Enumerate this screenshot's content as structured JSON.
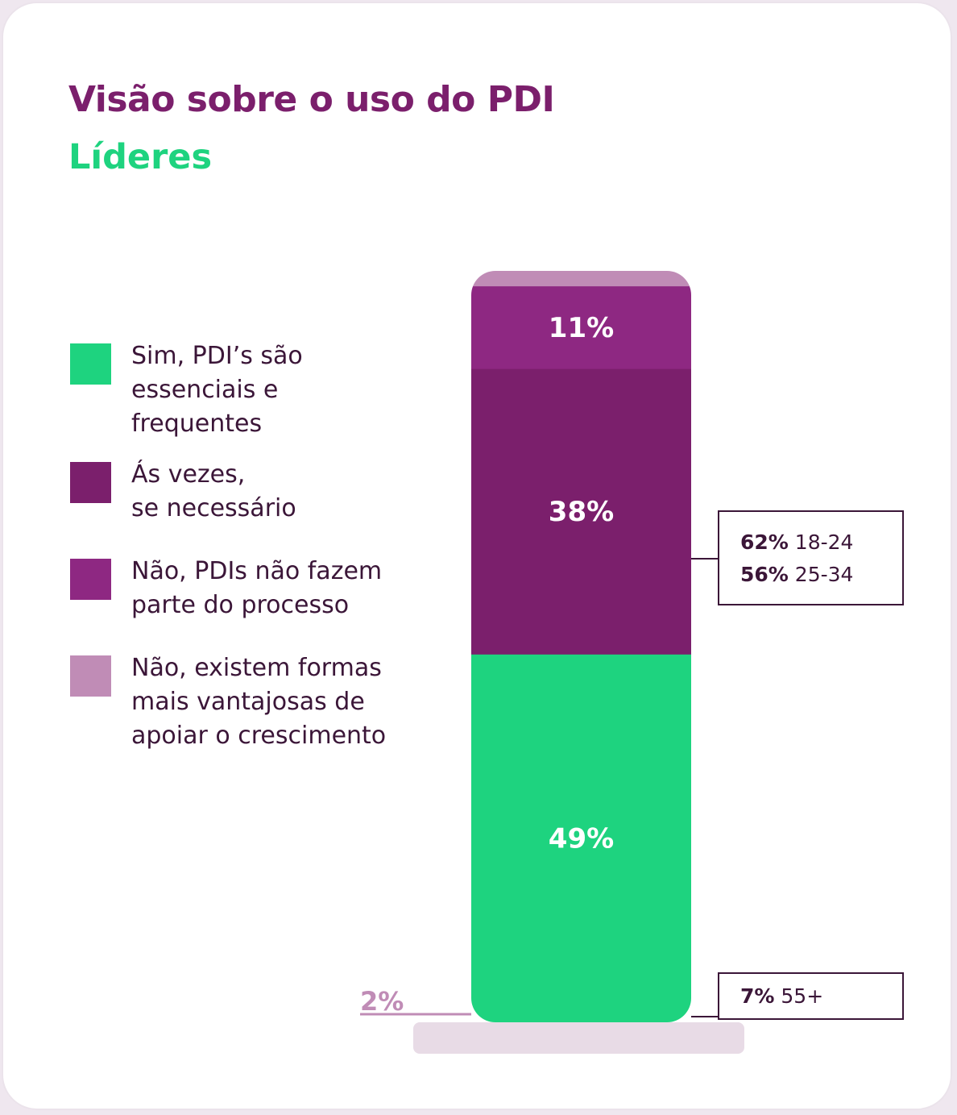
{
  "chart_data": {
    "type": "bar",
    "stacked": true,
    "title": "Visão sobre o uso do PDI",
    "subtitle": "Líderes",
    "categories": [
      "Líderes"
    ],
    "series": [
      {
        "name": "Sim, PDI’s são essenciais e frequentes",
        "values": [
          49
        ],
        "label": "49%",
        "color": "#1ed37f"
      },
      {
        "name": "Ás vezes, se necessário",
        "values": [
          38
        ],
        "label": "38%",
        "color": "#7b1f6c"
      },
      {
        "name": "Não, PDIs não fazem parte do processo",
        "values": [
          11
        ],
        "label": "11%",
        "color": "#8e2882"
      },
      {
        "name": "Não, existem formas mais vantajosas de apoiar o crescimento",
        "values": [
          2
        ],
        "label": "2%",
        "color": "#c08cb6"
      }
    ],
    "legend_position": "left",
    "annotations": [
      {
        "series": "Sim, PDI’s são essenciais e frequentes",
        "rows": [
          {
            "value": "62%",
            "group": "18-24"
          },
          {
            "value": "56%",
            "group": "25-34"
          }
        ]
      },
      {
        "series": "Não, PDIs não fazem parte do processo",
        "rows": [
          {
            "value": "7%",
            "group": "55+"
          }
        ]
      }
    ]
  },
  "legend": [
    {
      "label": "Sim, PDI’s são\nessenciais e\nfrequentes",
      "color": "#1ed37f"
    },
    {
      "label": "Ás vezes,\nse necessário",
      "color": "#7b1f6c"
    },
    {
      "label": "Não, PDIs não fazem\nparte do processo",
      "color": "#8e2882"
    },
    {
      "label": "Não, existem formas\nmais vantajosas de\napoiar o crescimento",
      "color": "#c08cb6"
    }
  ],
  "colors": {
    "title": "#7b1f6c",
    "subtitle": "#1ed37f",
    "text": "#3b1638",
    "base": "#e8dbe6"
  }
}
